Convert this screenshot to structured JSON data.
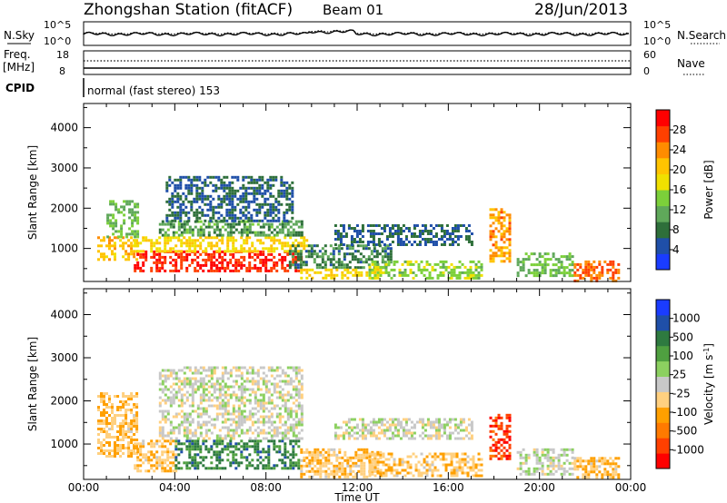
{
  "header": {
    "station_title": "Zhongshan Station (fitACF)",
    "beam_label": "Beam 01",
    "date_label": "28/Jun/2013"
  },
  "strip_panels": {
    "sky": {
      "left_label": "N.Sky",
      "left_ticks": [
        "10^5",
        "10^0"
      ],
      "right_ticks": [
        "10^5",
        "10^0"
      ],
      "right_label": "N.Search",
      "right_legend_line": "dotted"
    },
    "freq": {
      "left_label": "Freq.",
      "left_unit": "[MHz]",
      "left_ticks": [
        "18",
        "8"
      ],
      "right_ticks": [
        "60",
        "0"
      ],
      "right_label": "Nave",
      "right_legend_line": "dotted"
    },
    "cpid": {
      "left_label": "CPID",
      "mode_text": "normal (fast stereo) 153"
    }
  },
  "colors": {
    "power_scale": [
      "#1a3cff",
      "#1f4fa8",
      "#2e6f3a",
      "#5fa85a",
      "#7cd03a",
      "#f0e000",
      "#ffc400",
      "#ff8c00",
      "#ff4000",
      "#ff0000"
    ],
    "velocity_scale": [
      "#ff0000",
      "#ff4000",
      "#ff7a00",
      "#ffa000",
      "#ffd080",
      "#c8c8c8",
      "#8cd060",
      "#4fa040",
      "#2e7a40",
      "#1f4fa8",
      "#1a3cff"
    ]
  },
  "chart_data": [
    {
      "type": "heatmap",
      "name": "power",
      "ylabel": "Slant Range [km]",
      "xlabel": "Time UT",
      "x_ticks": [
        "00:00",
        "04:00",
        "08:00",
        "12:00",
        "16:00",
        "20:00",
        "00:00"
      ],
      "xlim_hours": [
        0,
        24
      ],
      "y_ticks": [
        1000,
        2000,
        3000,
        4000
      ],
      "ylim_km": [
        180,
        4600
      ],
      "colorbar": {
        "label": "Power [dB]",
        "tick_labels": [
          "28",
          "24",
          "20",
          "16",
          "12",
          "8",
          "4"
        ],
        "range": [
          0,
          30
        ]
      },
      "regions": [
        {
          "t0": 0.6,
          "t1": 2.3,
          "r0": 700,
          "r1": 1300,
          "v": 20
        },
        {
          "t0": 1.0,
          "t1": 2.4,
          "r0": 1300,
          "r1": 2200,
          "v": 12
        },
        {
          "t0": 2.2,
          "t1": 9.5,
          "r0": 450,
          "r1": 950,
          "v": 27
        },
        {
          "t0": 2.2,
          "t1": 9.8,
          "r0": 950,
          "r1": 1300,
          "v": 18
        },
        {
          "t0": 3.3,
          "t1": 9.6,
          "r0": 1300,
          "r1": 1700,
          "v": 10
        },
        {
          "t0": 3.6,
          "t1": 9.2,
          "r0": 1700,
          "r1": 2800,
          "v": 6
        },
        {
          "t0": 9.0,
          "t1": 13.5,
          "r0": 500,
          "r1": 1100,
          "v": 8
        },
        {
          "t0": 9.5,
          "t1": 13.0,
          "r0": 250,
          "r1": 500,
          "v": 18
        },
        {
          "t0": 11.0,
          "t1": 17.0,
          "r0": 1100,
          "r1": 1600,
          "v": 6
        },
        {
          "t0": 12.5,
          "t1": 17.5,
          "r0": 250,
          "r1": 700,
          "v": 14
        },
        {
          "t0": 17.8,
          "t1": 18.7,
          "r0": 650,
          "r1": 2000,
          "v": 22
        },
        {
          "t0": 19.0,
          "t1": 21.5,
          "r0": 300,
          "r1": 900,
          "v": 12
        },
        {
          "t0": 21.5,
          "t1": 23.5,
          "r0": 200,
          "r1": 700,
          "v": 24
        }
      ]
    },
    {
      "type": "heatmap",
      "name": "velocity",
      "ylabel": "Slant Range [km]",
      "xlabel": "Time UT",
      "x_ticks": [
        "00:00",
        "04:00",
        "08:00",
        "12:00",
        "16:00",
        "20:00",
        "00:00"
      ],
      "xlim_hours": [
        0,
        24
      ],
      "y_ticks": [
        1000,
        2000,
        3000,
        4000
      ],
      "ylim_km": [
        180,
        4600
      ],
      "colorbar": {
        "label": "Velocity [m s",
        "label_sup": "-1",
        "label_end": "]",
        "tick_labels": [
          "1000",
          "500",
          "100",
          "25",
          "-25",
          "-100",
          "-500",
          "-1000"
        ],
        "range": [
          -1200,
          1200
        ]
      },
      "regions": [
        {
          "t0": 0.6,
          "t1": 2.3,
          "r0": 700,
          "r1": 2200,
          "v": -300
        },
        {
          "t0": 2.2,
          "t1": 4.0,
          "r0": 400,
          "r1": 1100,
          "v": -300
        },
        {
          "t0": 4.0,
          "t1": 9.5,
          "r0": 450,
          "r1": 1100,
          "v": 600
        },
        {
          "t0": 3.3,
          "t1": 9.6,
          "r0": 1100,
          "r1": 2800,
          "v": 0
        },
        {
          "t0": 9.5,
          "t1": 13.0,
          "r0": 250,
          "r1": 900,
          "v": -300
        },
        {
          "t0": 11.0,
          "t1": 17.0,
          "r0": 1100,
          "r1": 1600,
          "v": 0
        },
        {
          "t0": 12.5,
          "t1": 17.5,
          "r0": 250,
          "r1": 800,
          "v": -300
        },
        {
          "t0": 17.8,
          "t1": 18.7,
          "r0": 650,
          "r1": 1700,
          "v": -900
        },
        {
          "t0": 19.0,
          "t1": 21.5,
          "r0": 300,
          "r1": 900,
          "v": 60
        },
        {
          "t0": 21.5,
          "t1": 23.5,
          "r0": 200,
          "r1": 700,
          "v": -300
        }
      ]
    }
  ]
}
